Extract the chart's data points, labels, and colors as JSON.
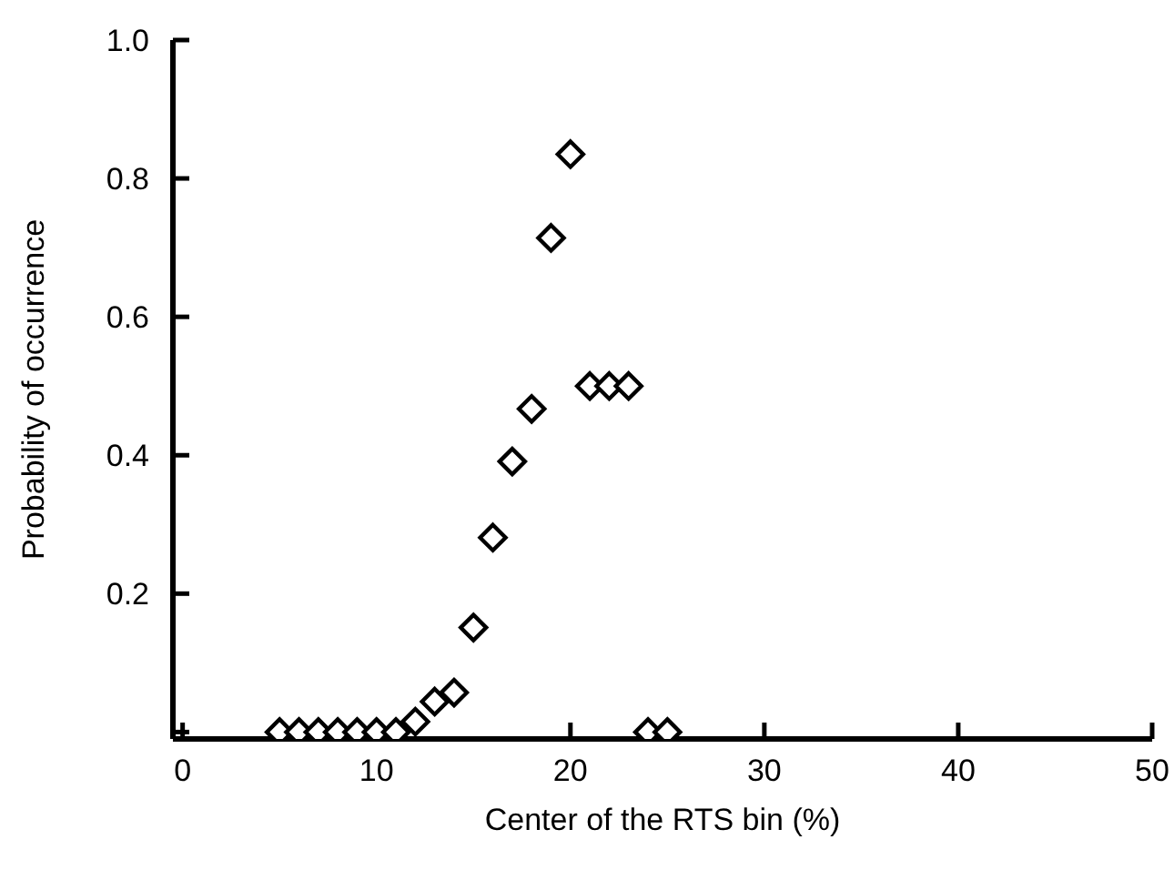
{
  "chart_data": {
    "type": "scatter",
    "xlabel": "Center of the RTS bin (%)",
    "ylabel": "Probability of occurrence",
    "x": [
      5,
      6,
      7,
      8,
      9,
      10,
      11,
      12,
      13,
      14,
      15,
      16,
      17,
      18,
      19,
      20,
      21,
      22,
      23,
      24,
      25
    ],
    "series": [
      {
        "color": "#000000",
        "values": [
          0,
          0,
          0,
          0,
          0,
          0,
          0,
          0.015,
          0.044,
          0.057,
          0.151,
          0.281,
          0.391,
          0.467,
          0.714,
          0.835,
          0.5,
          0.5,
          0.5,
          0,
          0
        ]
      }
    ],
    "xlim": [
      -0.5,
      50
    ],
    "xticks": [
      0,
      10,
      20,
      30,
      40,
      50
    ],
    "ylim": [
      -0.01,
      1
    ],
    "yticks": [
      {
        "value": 0,
        "label": null
      },
      0.2,
      0.4,
      0.6,
      0.8,
      {
        "value": 1,
        "label": "1.0"
      }
    ],
    "marker": "diamond",
    "grid": false,
    "legend": false
  }
}
